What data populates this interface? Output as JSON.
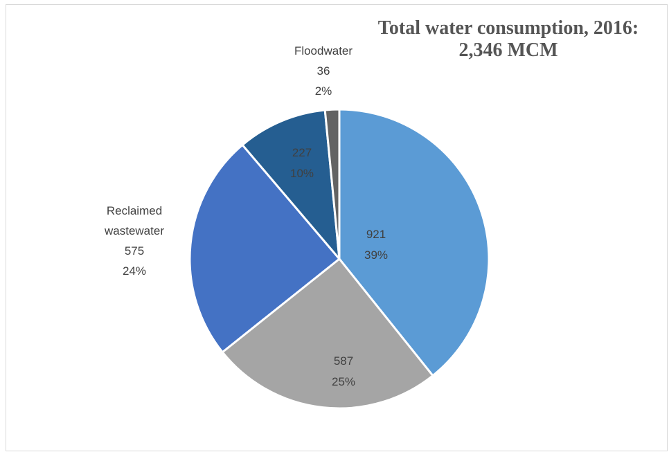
{
  "chart_data": {
    "type": "pie",
    "title_line1": "Total water consumption, 2016:",
    "title_line2": "2,346 MCM",
    "colors": [
      "#5b9bd5",
      "#a5a5a5",
      "#4472c4",
      "#255e91",
      "#636363"
    ],
    "slices": [
      {
        "name": "",
        "value": "921",
        "percent": "39%",
        "value_num": 921
      },
      {
        "name": "",
        "value": "587",
        "percent": "25%",
        "value_num": 587
      },
      {
        "name": "Reclaimed wastewater",
        "value": "575",
        "percent": "24%",
        "value_num": 575
      },
      {
        "name": "",
        "value": "227",
        "percent": "10%",
        "value_num": 227
      },
      {
        "name": "Floodwater",
        "value": "36",
        "percent": "2%",
        "value_num": 36
      }
    ],
    "reclaimed_label_line1": "Reclaimed",
    "reclaimed_label_line2": "wastewater"
  }
}
